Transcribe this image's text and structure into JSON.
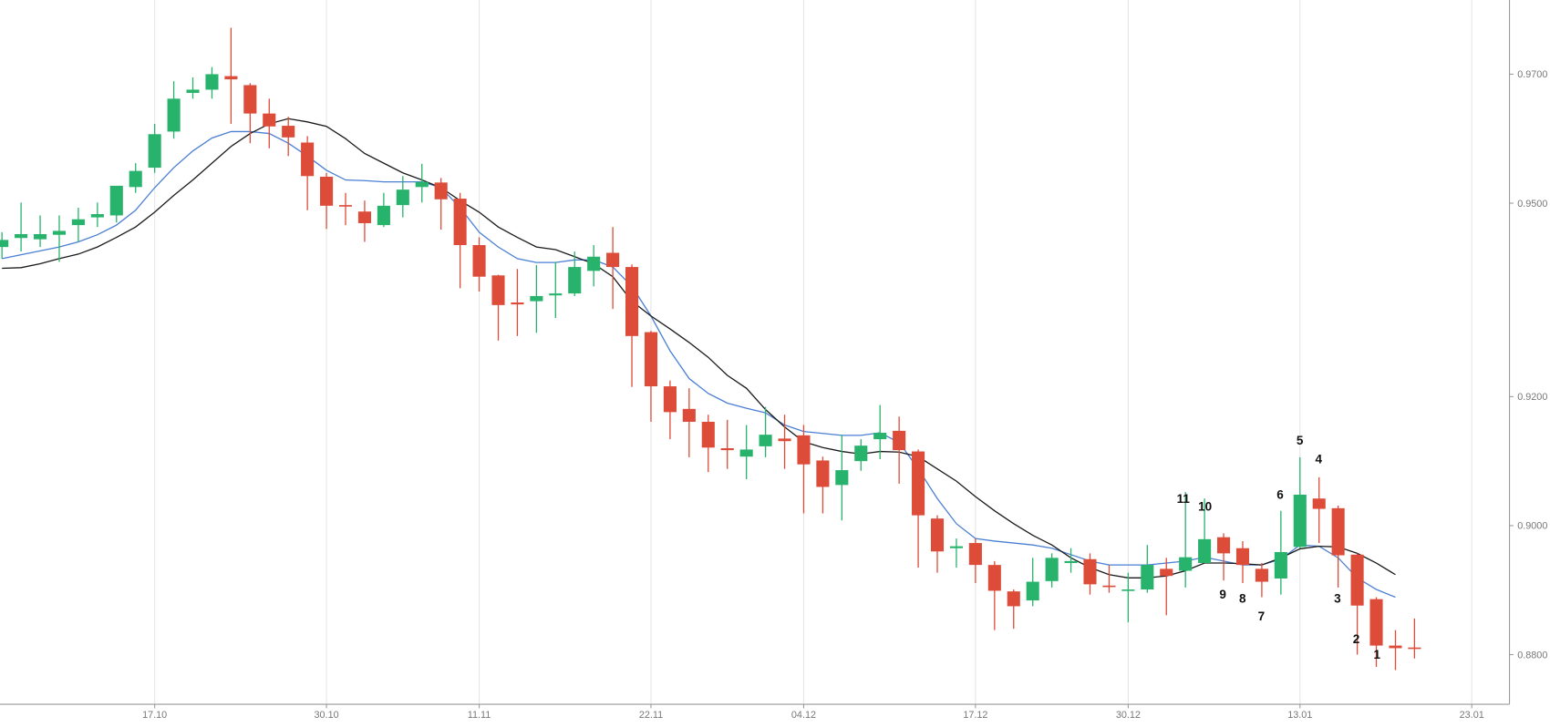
{
  "chart_data": {
    "type": "candlestick",
    "categories": [
      null,
      null,
      null,
      null,
      null,
      null,
      null,
      null,
      "17.10",
      null,
      null,
      null,
      null,
      null,
      null,
      null,
      null,
      "30.10",
      null,
      null,
      null,
      null,
      null,
      null,
      null,
      "11.11",
      null,
      null,
      null,
      null,
      null,
      null,
      null,
      null,
      "22.11",
      null,
      null,
      null,
      null,
      null,
      null,
      null,
      "04.12",
      null,
      null,
      null,
      null,
      null,
      null,
      null,
      null,
      "17.12",
      null,
      null,
      null,
      null,
      null,
      null,
      null,
      "30.12",
      null,
      null,
      null,
      null,
      null,
      null,
      null,
      null,
      "13.01",
      null,
      null,
      null,
      null,
      null,
      null,
      null,
      null,
      "23.01"
    ],
    "open": [
      0.9432,
      0.9446,
      0.9444,
      0.9451,
      0.9466,
      0.9478,
      0.9481,
      0.9525,
      0.9555,
      0.9611,
      0.9671,
      0.9676,
      0.9697,
      0.9683,
      0.9639,
      0.962,
      0.9594,
      0.9541,
      0.9497,
      0.9487,
      0.9466,
      0.9497,
      0.9525,
      0.9532,
      0.9507,
      0.9435,
      0.9388,
      0.9346,
      0.9348,
      0.9357,
      0.936,
      0.9395,
      0.9423,
      0.9401,
      0.93,
      0.9216,
      0.9181,
      0.9161,
      0.912,
      0.9107,
      0.9123,
      0.9135,
      0.914,
      0.9101,
      0.9063,
      0.91,
      0.9134,
      0.9147,
      0.9115,
      0.9011,
      0.8965,
      0.8973,
      0.8939,
      0.8898,
      0.8884,
      0.8914,
      0.8942,
      0.8948,
      0.8907,
      0.8899,
      0.8901,
      0.8933,
      0.893,
      0.8942,
      0.8982,
      0.8965,
      0.8933,
      0.8918,
      0.8967,
      0.9042,
      0.9027,
      0.8955,
      0.8886,
      0.8814,
      0.8811,
      null,
      null,
      null
    ],
    "high": [
      0.9455,
      0.9501,
      0.9481,
      0.9481,
      0.9493,
      0.9501,
      0.9524,
      0.9562,
      0.9623,
      0.9689,
      0.9695,
      0.9711,
      0.9772,
      0.9686,
      0.9662,
      0.9634,
      0.9604,
      0.9547,
      0.9516,
      0.9504,
      0.9516,
      0.9542,
      0.9561,
      0.9539,
      0.9516,
      0.9447,
      0.9389,
      0.9398,
      0.9404,
      0.9409,
      0.9425,
      0.9435,
      0.9463,
      0.9405,
      0.9302,
      0.9225,
      0.9213,
      0.9172,
      0.9164,
      0.9156,
      0.9184,
      0.9172,
      0.9156,
      0.9107,
      0.9141,
      0.9134,
      0.9187,
      0.9169,
      0.9118,
      0.9016,
      0.898,
      0.898,
      0.8945,
      0.8901,
      0.895,
      0.8957,
      0.8965,
      0.8957,
      0.8939,
      0.8927,
      0.897,
      0.895,
      0.9052,
      0.9042,
      0.8988,
      0.8976,
      0.8942,
      0.9023,
      0.9106,
      0.9075,
      0.9031,
      0.8957,
      0.8889,
      0.8838,
      0.8856,
      null,
      null,
      null
    ],
    "low": [
      0.9414,
      0.9425,
      0.9432,
      0.9409,
      0.944,
      0.9463,
      0.947,
      0.9516,
      0.9547,
      0.96,
      0.9662,
      0.9662,
      0.9623,
      0.9593,
      0.9585,
      0.9573,
      0.9489,
      0.946,
      0.9466,
      0.944,
      0.9463,
      0.9478,
      0.9501,
      0.9459,
      0.9368,
      0.9363,
      0.9287,
      0.9294,
      0.9299,
      0.9322,
      0.9356,
      0.9371,
      0.9336,
      0.9215,
      0.9161,
      0.9134,
      0.9106,
      0.9083,
      0.9088,
      0.9072,
      0.9106,
      0.9088,
      0.9019,
      0.9019,
      0.9008,
      0.9085,
      0.9103,
      0.9065,
      0.8935,
      0.8927,
      0.8935,
      0.8911,
      0.8838,
      0.884,
      0.8875,
      0.8904,
      0.8927,
      0.8893,
      0.8896,
      0.885,
      0.8896,
      0.8861,
      0.8904,
      0.8942,
      0.8915,
      0.8911,
      0.8889,
      0.8893,
      0.8965,
      0.8973,
      0.8904,
      0.88,
      0.8781,
      0.8776,
      0.8794,
      null,
      null,
      null
    ],
    "close": [
      0.9443,
      0.9452,
      0.9452,
      0.9457,
      0.9475,
      0.9483,
      0.9527,
      0.955,
      0.9607,
      0.9662,
      0.9676,
      0.97,
      0.9692,
      0.9639,
      0.9619,
      0.9602,
      0.9542,
      0.9496,
      0.9496,
      0.9469,
      0.9496,
      0.9521,
      0.9533,
      0.9506,
      0.9435,
      0.9386,
      0.9342,
      0.9343,
      0.9356,
      0.936,
      0.9401,
      0.9417,
      0.9401,
      0.9294,
      0.9216,
      0.9176,
      0.9161,
      0.9121,
      0.9117,
      0.9118,
      0.9141,
      0.9131,
      0.9095,
      0.906,
      0.9086,
      0.9124,
      0.9144,
      0.9117,
      0.9016,
      0.896,
      0.8968,
      0.8939,
      0.8899,
      0.8875,
      0.8913,
      0.895,
      0.8945,
      0.8909,
      0.8906,
      0.8901,
      0.8939,
      0.8922,
      0.8951,
      0.8979,
      0.8957,
      0.8939,
      0.8913,
      0.8959,
      0.9048,
      0.9026,
      0.8954,
      0.8876,
      0.8814,
      0.881,
      0.881,
      null,
      null,
      null
    ],
    "up_color": "#27b36b",
    "down_color": "#dd4b39",
    "lines": [
      {
        "color": "#4a7fd4",
        "values": [
          0.9414,
          0.942,
          0.9426,
          0.9432,
          0.944,
          0.9451,
          0.9466,
          0.9489,
          0.9524,
          0.9555,
          0.9581,
          0.9601,
          0.9611,
          0.9611,
          0.9608,
          0.9593,
          0.9573,
          0.9551,
          0.9536,
          0.9535,
          0.9533,
          0.9533,
          0.9533,
          0.9524,
          0.9493,
          0.9455,
          0.9432,
          0.9414,
          0.9408,
          0.9408,
          0.9412,
          0.9412,
          0.9401,
          0.9371,
          0.9325,
          0.9271,
          0.9228,
          0.9205,
          0.919,
          0.9182,
          0.9175,
          0.9156,
          0.9146,
          0.9143,
          0.914,
          0.914,
          0.9144,
          0.9129,
          0.9088,
          0.9042,
          0.9003,
          0.898,
          0.8976,
          0.8973,
          0.897,
          0.8965,
          0.8955,
          0.8945,
          0.8939,
          0.8939,
          0.8939,
          0.8942,
          0.8945,
          0.8951,
          0.8945,
          0.8939,
          0.8939,
          0.8948,
          0.897,
          0.8968,
          0.895,
          0.8919,
          0.8901,
          0.8889,
          null,
          null,
          null,
          null
        ]
      },
      {
        "color": "#1a1a1a",
        "values": [
          0.9399,
          0.94,
          0.9406,
          0.9414,
          0.9421,
          0.9432,
          0.9447,
          0.9463,
          0.9486,
          0.9512,
          0.9536,
          0.9562,
          0.9588,
          0.9608,
          0.9623,
          0.9631,
          0.9626,
          0.9619,
          0.96,
          0.9577,
          0.9562,
          0.9547,
          0.9536,
          0.9524,
          0.9504,
          0.9486,
          0.9463,
          0.9447,
          0.9432,
          0.9428,
          0.9417,
          0.9406,
          0.9386,
          0.9348,
          0.9325,
          0.9305,
          0.9284,
          0.9261,
          0.9233,
          0.9213,
          0.918,
          0.9153,
          0.913,
          0.9121,
          0.9115,
          0.9111,
          0.9115,
          0.9114,
          0.9107,
          0.9088,
          0.9069,
          0.9045,
          0.9023,
          0.9003,
          0.8985,
          0.897,
          0.895,
          0.8935,
          0.8924,
          0.8919,
          0.8919,
          0.8922,
          0.893,
          0.8942,
          0.8942,
          0.8941,
          0.8939,
          0.895,
          0.8964,
          0.8968,
          0.8967,
          0.8957,
          0.8942,
          0.8924,
          null,
          null,
          null,
          null
        ]
      }
    ],
    "ylim": [
      0.8723,
      0.9815
    ],
    "yticks": [
      {
        "value": 0.97,
        "label": "0.9700"
      },
      {
        "value": 0.95,
        "label": "0.9500"
      },
      {
        "value": 0.92,
        "label": "0.9200"
      },
      {
        "value": 0.9,
        "label": "0.9000"
      },
      {
        "value": 0.88,
        "label": "0.8800"
      }
    ],
    "grid": true,
    "annotations": [
      {
        "text": "11"
      },
      {
        "text": "10"
      },
      {
        "text": "9"
      },
      {
        "text": "8"
      },
      {
        "text": "7"
      },
      {
        "text": "6"
      },
      {
        "text": "5"
      },
      {
        "text": "4"
      },
      {
        "text": "3"
      },
      {
        "text": "2"
      },
      {
        "text": "1"
      }
    ]
  }
}
